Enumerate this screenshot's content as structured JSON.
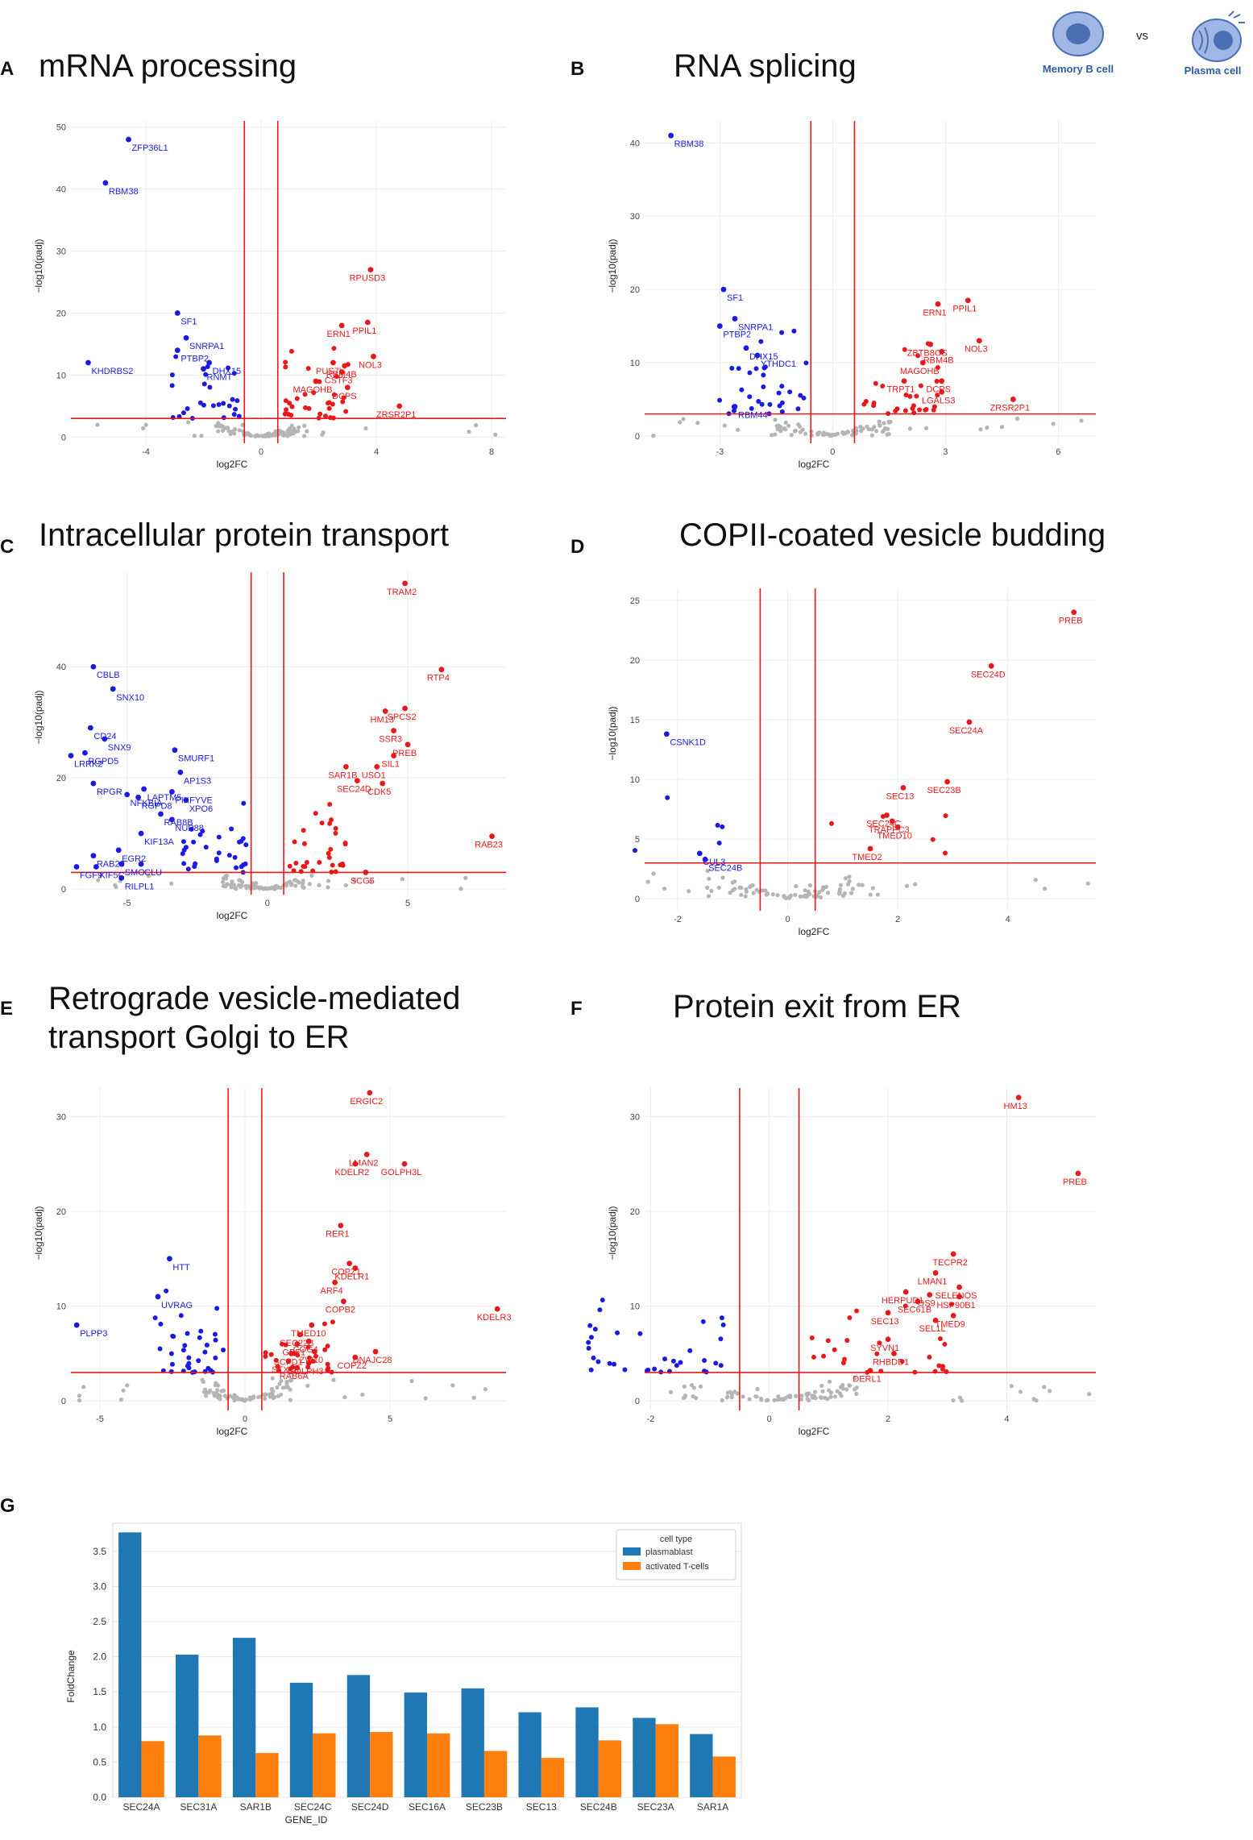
{
  "header": {
    "memory_label": "Memory B cell",
    "vs_label": "vs",
    "plasma_label": "Plasma cell"
  },
  "colors": {
    "up": "#e8191b",
    "down": "#1a1ae0",
    "ns": "#b5b5b5",
    "line": "#e8191b",
    "grid": "#ececec",
    "plasmablast": "#1f77b4",
    "tcells": "#ff7f0e"
  },
  "chart_data": [
    {
      "id": "A",
      "type": "scatter",
      "title": "mRNA processing",
      "xlabel": "log2FC",
      "ylabel": "−log10(padj)",
      "xlim": [
        -6.6,
        8.5
      ],
      "ylim": [
        -1,
        51
      ],
      "xticks": [
        -4,
        0,
        4,
        8
      ],
      "yticks": [
        0,
        10,
        20,
        30,
        40,
        50
      ],
      "vlines": [
        -0.58,
        0.58
      ],
      "hline": 3,
      "labels": [
        {
          "g": "ZFP36L1",
          "x": -4.6,
          "y": 48,
          "c": "down"
        },
        {
          "g": "RBM38",
          "x": -5.4,
          "y": 41,
          "c": "down"
        },
        {
          "g": "SF1",
          "x": -2.9,
          "y": 20,
          "c": "down"
        },
        {
          "g": "SNRPA1",
          "x": -2.6,
          "y": 16,
          "c": "down"
        },
        {
          "g": "PTBP2",
          "x": -2.9,
          "y": 14,
          "c": "down"
        },
        {
          "g": "DHX15",
          "x": -1.8,
          "y": 12,
          "c": "down"
        },
        {
          "g": "RNMT",
          "x": -2.0,
          "y": 11,
          "c": "down"
        },
        {
          "g": "KHDRBS2",
          "x": -6.0,
          "y": 12,
          "c": "down"
        },
        {
          "g": "RPUSD3",
          "x": 3.8,
          "y": 27,
          "c": "up"
        },
        {
          "g": "PPIL1",
          "x": 3.7,
          "y": 18.5,
          "c": "up"
        },
        {
          "g": "ERN1",
          "x": 2.8,
          "y": 18,
          "c": "up"
        },
        {
          "g": "NOL3",
          "x": 3.9,
          "y": 13,
          "c": "up"
        },
        {
          "g": "PUS7L",
          "x": 2.5,
          "y": 12,
          "c": "up"
        },
        {
          "g": "RBM4B",
          "x": 2.9,
          "y": 11.5,
          "c": "up"
        },
        {
          "g": "CSTF3",
          "x": 2.8,
          "y": 10.5,
          "c": "up"
        },
        {
          "g": "MAGOHB",
          "x": 1.9,
          "y": 9,
          "c": "up"
        },
        {
          "g": "DCPS",
          "x": 3.0,
          "y": 8,
          "c": "up"
        },
        {
          "g": "ZRSR2P1",
          "x": 4.8,
          "y": 5,
          "c": "up"
        }
      ]
    },
    {
      "id": "B",
      "type": "scatter",
      "title": "RNA splicing",
      "xlabel": "log2FC",
      "ylabel": "−log10(padj)",
      "xlim": [
        -5.0,
        7.0
      ],
      "ylim": [
        -1,
        43
      ],
      "xticks": [
        -3,
        0,
        3,
        6
      ],
      "yticks": [
        0,
        10,
        20,
        30,
        40
      ],
      "vlines": [
        -0.58,
        0.58
      ],
      "hline": 3,
      "labels": [
        {
          "g": "RBM38",
          "x": -4.3,
          "y": 41,
          "c": "down"
        },
        {
          "g": "SF1",
          "x": -2.9,
          "y": 20,
          "c": "down"
        },
        {
          "g": "SNRPA1",
          "x": -2.6,
          "y": 16,
          "c": "down"
        },
        {
          "g": "PTBP2",
          "x": -3.0,
          "y": 15,
          "c": "down"
        },
        {
          "g": "DHX15",
          "x": -2.3,
          "y": 12,
          "c": "down"
        },
        {
          "g": "YTHDC1",
          "x": -2.0,
          "y": 11,
          "c": "down"
        },
        {
          "g": "RBM44",
          "x": -2.6,
          "y": 4,
          "c": "down"
        },
        {
          "g": "PPIL1",
          "x": 3.6,
          "y": 18.5,
          "c": "up"
        },
        {
          "g": "ERN1",
          "x": 2.8,
          "y": 18,
          "c": "up"
        },
        {
          "g": "ZBTB8OS",
          "x": 2.6,
          "y": 12.5,
          "c": "up"
        },
        {
          "g": "NOL3",
          "x": 3.9,
          "y": 13,
          "c": "up"
        },
        {
          "g": "RBM4B",
          "x": 2.9,
          "y": 11.5,
          "c": "up"
        },
        {
          "g": "MAGOHB",
          "x": 2.4,
          "y": 10,
          "c": "up"
        },
        {
          "g": "DCPS",
          "x": 2.9,
          "y": 7.5,
          "c": "up"
        },
        {
          "g": "TRPT1",
          "x": 1.9,
          "y": 7.5,
          "c": "up"
        },
        {
          "g": "LGALS3",
          "x": 2.9,
          "y": 6,
          "c": "up"
        },
        {
          "g": "ZRSR2P1",
          "x": 4.8,
          "y": 5,
          "c": "up"
        }
      ]
    },
    {
      "id": "C",
      "type": "scatter",
      "title": "Intracellular protein transport",
      "xlabel": "log2FC",
      "ylabel": "−log10(padj)",
      "xlim": [
        -7.0,
        8.5
      ],
      "ylim": [
        -1,
        57
      ],
      "xticks": [
        -5,
        0,
        5
      ],
      "yticks": [
        0,
        20,
        40
      ],
      "vlines": [
        -0.58,
        0.58
      ],
      "hline": 3,
      "labels": [
        {
          "g": "TRAM2",
          "x": 4.9,
          "y": 55,
          "c": "up"
        },
        {
          "g": "RTP4",
          "x": 6.2,
          "y": 39.5,
          "c": "up"
        },
        {
          "g": "SPCS2",
          "x": 4.9,
          "y": 32.5,
          "c": "up"
        },
        {
          "g": "HM13",
          "x": 4.2,
          "y": 32,
          "c": "up"
        },
        {
          "g": "SSR3",
          "x": 4.5,
          "y": 28.5,
          "c": "up"
        },
        {
          "g": "PREB",
          "x": 5.0,
          "y": 26,
          "c": "up"
        },
        {
          "g": "SAR1B",
          "x": 2.8,
          "y": 22,
          "c": "up"
        },
        {
          "g": "USO1",
          "x": 3.9,
          "y": 22,
          "c": "up"
        },
        {
          "g": "SIL1",
          "x": 4.5,
          "y": 24,
          "c": "up"
        },
        {
          "g": "SEC24D",
          "x": 3.2,
          "y": 19.5,
          "c": "up"
        },
        {
          "g": "CDK5",
          "x": 4.1,
          "y": 19,
          "c": "up"
        },
        {
          "g": "RAB23",
          "x": 8.0,
          "y": 9.5,
          "c": "up"
        },
        {
          "g": "SCG5",
          "x": 3.5,
          "y": 3,
          "c": "up"
        },
        {
          "g": "CBLB",
          "x": -6.2,
          "y": 40,
          "c": "down"
        },
        {
          "g": "SNX10",
          "x": -5.5,
          "y": 36,
          "c": "down"
        },
        {
          "g": "CD24",
          "x": -6.3,
          "y": 29,
          "c": "down"
        },
        {
          "g": "SNX9",
          "x": -5.8,
          "y": 27,
          "c": "down"
        },
        {
          "g": "RGPD5",
          "x": -6.5,
          "y": 24.5,
          "c": "down"
        },
        {
          "g": "LRRK2",
          "x": -7.0,
          "y": 24,
          "c": "down"
        },
        {
          "g": "SMURF1",
          "x": -3.3,
          "y": 25,
          "c": "down"
        },
        {
          "g": "AP1S3",
          "x": -3.1,
          "y": 21,
          "c": "down"
        },
        {
          "g": "RPGR",
          "x": -6.2,
          "y": 19,
          "c": "down"
        },
        {
          "g": "PIKFYVE",
          "x": -3.4,
          "y": 17.5,
          "c": "down"
        },
        {
          "g": "LAPTM5",
          "x": -4.4,
          "y": 18,
          "c": "down"
        },
        {
          "g": "NFKBIA",
          "x": -5.0,
          "y": 17,
          "c": "down"
        },
        {
          "g": "RGPD8",
          "x": -4.6,
          "y": 16.5,
          "c": "down"
        },
        {
          "g": "XPO6",
          "x": -2.9,
          "y": 16,
          "c": "down"
        },
        {
          "g": "RAB8B",
          "x": -3.8,
          "y": 13.5,
          "c": "down"
        },
        {
          "g": "NUP88",
          "x": -3.4,
          "y": 12.5,
          "c": "down"
        },
        {
          "g": "KIF13A",
          "x": -4.5,
          "y": 10,
          "c": "down"
        },
        {
          "g": "EGR2",
          "x": -5.3,
          "y": 7,
          "c": "down"
        },
        {
          "g": "RAB20",
          "x": -6.2,
          "y": 6,
          "c": "down"
        },
        {
          "g": "SMO",
          "x": -5.2,
          "y": 4.5,
          "c": "down"
        },
        {
          "g": "FGF9",
          "x": -6.8,
          "y": 4,
          "c": "down"
        },
        {
          "g": "KIF5C",
          "x": -6.1,
          "y": 4,
          "c": "down"
        },
        {
          "g": "CLU",
          "x": -4.5,
          "y": 4.5,
          "c": "down"
        },
        {
          "g": "RILPL1",
          "x": -5.2,
          "y": 2,
          "c": "down"
        }
      ]
    },
    {
      "id": "D",
      "type": "scatter",
      "title": "COPII-coated vesicle budding",
      "xlabel": "log2FC",
      "ylabel": "−log10(padj)",
      "xlim": [
        -2.6,
        5.6
      ],
      "ylim": [
        -1,
        26
      ],
      "xticks": [
        -2,
        0,
        2,
        4
      ],
      "yticks": [
        0,
        5,
        10,
        15,
        20,
        25
      ],
      "vlines": [
        -0.5,
        0.5
      ],
      "hline": 3,
      "labels": [
        {
          "g": "PREB",
          "x": 5.2,
          "y": 24,
          "c": "up"
        },
        {
          "g": "SEC24D",
          "x": 3.7,
          "y": 19.5,
          "c": "up"
        },
        {
          "g": "SEC24A",
          "x": 3.3,
          "y": 14.8,
          "c": "up"
        },
        {
          "g": "SEC23B",
          "x": 2.9,
          "y": 9.8,
          "c": "up"
        },
        {
          "g": "SEC13",
          "x": 2.1,
          "y": 9.3,
          "c": "up"
        },
        {
          "g": "SEC24C",
          "x": 1.8,
          "y": 7,
          "c": "up"
        },
        {
          "g": "TRAPPC3",
          "x": 1.9,
          "y": 6.5,
          "c": "up"
        },
        {
          "g": "TMED10",
          "x": 2.0,
          "y": 6,
          "c": "up"
        },
        {
          "g": "TMED2",
          "x": 1.5,
          "y": 4.2,
          "c": "up"
        },
        {
          "g": "CSNK1D",
          "x": -2.2,
          "y": 13.8,
          "c": "down"
        },
        {
          "g": "CUL3",
          "x": -1.6,
          "y": 3.8,
          "c": "down"
        },
        {
          "g": "SEC24B",
          "x": -1.5,
          "y": 3.3,
          "c": "down"
        }
      ]
    },
    {
      "id": "E",
      "type": "scatter",
      "title": "Retrograde vesicle-mediated\ntransport Golgi to ER",
      "xlabel": "log2FC",
      "ylabel": "−log10(padj)",
      "xlim": [
        -6.0,
        9.0
      ],
      "ylim": [
        -1,
        33
      ],
      "xticks": [
        -5,
        0,
        5
      ],
      "yticks": [
        0,
        10,
        20,
        30
      ],
      "vlines": [
        -0.58,
        0.58
      ],
      "hline": 3,
      "labels": [
        {
          "g": "ERGIC2",
          "x": 4.3,
          "y": 32.5,
          "c": "up"
        },
        {
          "g": "LMAN2",
          "x": 4.2,
          "y": 26,
          "c": "up"
        },
        {
          "g": "KDELR2",
          "x": 3.8,
          "y": 25,
          "c": "up"
        },
        {
          "g": "GOLPH3L",
          "x": 5.5,
          "y": 25,
          "c": "up"
        },
        {
          "g": "RER1",
          "x": 3.3,
          "y": 18.5,
          "c": "up"
        },
        {
          "g": "COPZ1",
          "x": 3.6,
          "y": 14.5,
          "c": "up"
        },
        {
          "g": "KDELR1",
          "x": 3.8,
          "y": 14,
          "c": "up"
        },
        {
          "g": "ARF4",
          "x": 3.1,
          "y": 12.5,
          "c": "up"
        },
        {
          "g": "COPB2",
          "x": 3.4,
          "y": 10.5,
          "c": "up"
        },
        {
          "g": "KDELR3",
          "x": 8.7,
          "y": 9.7,
          "c": "up"
        },
        {
          "g": "TMED10",
          "x": 2.3,
          "y": 8,
          "c": "up"
        },
        {
          "g": "SEC22B",
          "x": 1.9,
          "y": 7,
          "c": "up"
        },
        {
          "g": "COG4",
          "x": 2.2,
          "y": 6.3,
          "c": "up"
        },
        {
          "g": "GBF1",
          "x": 1.8,
          "y": 6,
          "c": "up"
        },
        {
          "g": "SCFD1",
          "x": 1.6,
          "y": 5,
          "c": "up"
        },
        {
          "g": "ZW10",
          "x": 2.4,
          "y": 5.2,
          "c": "up"
        },
        {
          "g": "DNAJC28",
          "x": 4.5,
          "y": 5.2,
          "c": "up"
        },
        {
          "g": "COPZ2",
          "x": 3.8,
          "y": 4.6,
          "c": "up"
        },
        {
          "g": "STX18",
          "x": 1.5,
          "y": 4.2,
          "c": "up"
        },
        {
          "g": "GOLPH3",
          "x": 2.2,
          "y": 4,
          "c": "up"
        },
        {
          "g": "RAB6A",
          "x": 1.8,
          "y": 3.5,
          "c": "up"
        },
        {
          "g": "HTT",
          "x": -2.6,
          "y": 15,
          "c": "down"
        },
        {
          "g": "UVRAG",
          "x": -3.0,
          "y": 11,
          "c": "down"
        },
        {
          "g": "PLPP3",
          "x": -5.8,
          "y": 8,
          "c": "down"
        }
      ]
    },
    {
      "id": "F",
      "type": "scatter",
      "title": "Protein exit from ER",
      "xlabel": "log2FC",
      "ylabel": "−log10(padj)",
      "xlim": [
        -2.1,
        5.5
      ],
      "ylim": [
        -1,
        33
      ],
      "xticks": [
        -2,
        0,
        2,
        4
      ],
      "yticks": [
        0,
        10,
        20,
        30
      ],
      "vlines": [
        -0.5,
        0.5
      ],
      "hline": 3,
      "labels": [
        {
          "g": "HM13",
          "x": 4.2,
          "y": 32,
          "c": "up"
        },
        {
          "g": "PREB",
          "x": 5.2,
          "y": 24,
          "c": "up"
        },
        {
          "g": "TECPR2",
          "x": 3.1,
          "y": 15.5,
          "c": "up"
        },
        {
          "g": "LMAN1",
          "x": 2.8,
          "y": 13.5,
          "c": "up"
        },
        {
          "g": "SELENOS",
          "x": 3.2,
          "y": 12,
          "c": "up"
        },
        {
          "g": "HERPUD1",
          "x": 2.3,
          "y": 11.5,
          "c": "up"
        },
        {
          "g": "OS9",
          "x": 2.7,
          "y": 11.2,
          "c": "up"
        },
        {
          "g": "HSP90B1",
          "x": 3.2,
          "y": 11,
          "c": "up"
        },
        {
          "g": "SEC61B",
          "x": 2.5,
          "y": 10.5,
          "c": "up"
        },
        {
          "g": "TMED9",
          "x": 3.1,
          "y": 9,
          "c": "up"
        },
        {
          "g": "SEC13",
          "x": 2.0,
          "y": 9.3,
          "c": "up"
        },
        {
          "g": "SEL1L",
          "x": 2.8,
          "y": 8.5,
          "c": "up"
        },
        {
          "g": "SYVN1",
          "x": 2.0,
          "y": 6.5,
          "c": "up"
        },
        {
          "g": "RHBDD1",
          "x": 2.1,
          "y": 5,
          "c": "up"
        },
        {
          "g": "DERL1",
          "x": 1.7,
          "y": 3.2,
          "c": "up"
        }
      ]
    },
    {
      "id": "G",
      "type": "bar",
      "xlabel": "GENE_ID",
      "ylabel": "FoldChange",
      "ylim": [
        0,
        3.9
      ],
      "yticks": [
        0.0,
        0.5,
        1.0,
        1.5,
        2.0,
        2.5,
        3.0,
        3.5
      ],
      "ytick_labels": [
        "0.0",
        "0.5",
        "1.0",
        "1.5",
        "2.0",
        "2.5",
        "3.0",
        "3.5"
      ],
      "categories": [
        "SEC24A",
        "SEC31A",
        "SAR1B",
        "SEC24C",
        "SEC24D",
        "SEC16A",
        "SEC23B",
        "SEC13",
        "SEC24B",
        "SEC23A",
        "SAR1A"
      ],
      "legend_title": "cell type",
      "series": [
        {
          "name": "plasmablast",
          "values": [
            3.77,
            2.03,
            2.27,
            1.63,
            1.74,
            1.49,
            1.55,
            1.21,
            1.28,
            1.13,
            0.9
          ]
        },
        {
          "name": "activated T-cells",
          "values": [
            0.8,
            0.88,
            0.63,
            0.91,
            0.93,
            0.91,
            0.66,
            0.56,
            0.81,
            1.04,
            0.58
          ]
        }
      ]
    }
  ]
}
